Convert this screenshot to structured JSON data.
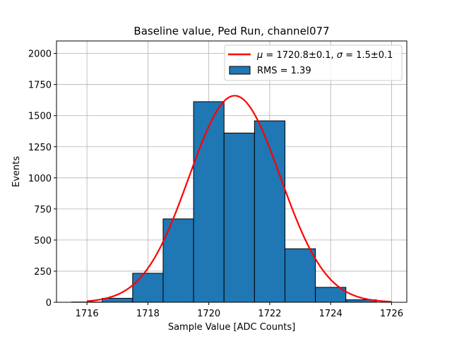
{
  "chart_data": {
    "type": "bar",
    "title": "Baseline value, Ped Run, channel077",
    "xlabel": "Sample Value [ADC Counts]",
    "ylabel": "Events",
    "xlim": [
      1715.0,
      1726.5
    ],
    "ylim": [
      0,
      2100
    ],
    "xticks": [
      1716,
      1718,
      1720,
      1722,
      1724,
      1726
    ],
    "yticks": [
      0,
      250,
      500,
      750,
      1000,
      1250,
      1500,
      1750,
      2000
    ],
    "grid": true,
    "legend_position": "top-right",
    "histogram": {
      "name": "RMS = 1.39",
      "color": "#1f77b4",
      "edge_color": "#000000",
      "bin_edges": [
        1715.5,
        1716.5,
        1717.5,
        1718.5,
        1719.5,
        1720.5,
        1721.5,
        1722.5,
        1723.5,
        1724.5,
        1725.5
      ],
      "counts": [
        2,
        32,
        233,
        670,
        1612,
        1360,
        1458,
        430,
        120,
        20
      ]
    },
    "fit": {
      "name": "$\\mu = 1720.8$±0.1, $\\sigma = 1.5$±0.1",
      "color": "#ff0000",
      "amplitude": 1660,
      "mu": 1720.85,
      "sigma": 1.5,
      "x_range": [
        1716,
        1726
      ]
    },
    "legend": {
      "fit_label_parts": [
        {
          "text": "μ",
          "italic": true
        },
        {
          "text": " = 1720.8±0.1, ",
          "italic": false
        },
        {
          "text": "σ",
          "italic": true
        },
        {
          "text": " = 1.5±0.1",
          "italic": false
        }
      ],
      "hist_label": "RMS = 1.39"
    }
  }
}
